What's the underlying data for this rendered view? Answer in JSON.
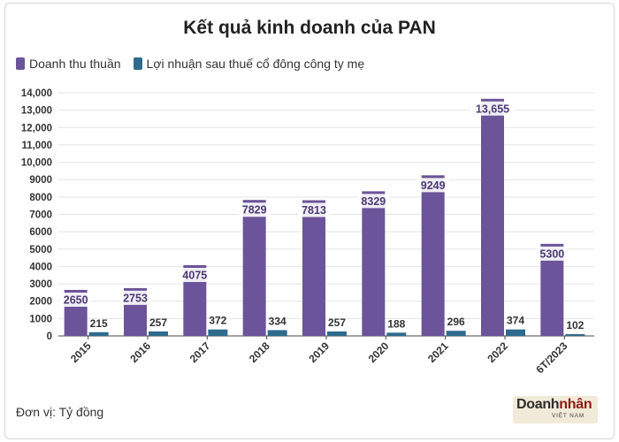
{
  "chart_data": {
    "type": "bar",
    "title": "Kết quả kinh doanh của PAN",
    "categories": [
      "2015",
      "2016",
      "2017",
      "2018",
      "2019",
      "2020",
      "2021",
      "2022",
      "6T/2023"
    ],
    "series": [
      {
        "name": "Doanh thu thuần",
        "color": "#6b5499",
        "values": [
          2650,
          2753,
          4075,
          7829,
          7813,
          8329,
          9249,
          13655,
          5300
        ],
        "labels": [
          "2650",
          "2753",
          "4075",
          "7829",
          "7813",
          "8329",
          "9249",
          "13,655",
          "5300"
        ]
      },
      {
        "name": "Lợi nhuận sau thuế cổ đông công ty mẹ",
        "color": "#2e6b8c",
        "values": [
          215,
          257,
          372,
          334,
          257,
          188,
          296,
          374,
          102
        ],
        "labels": [
          "215",
          "257",
          "372",
          "334",
          "257",
          "188",
          "296",
          "374",
          "102"
        ]
      }
    ],
    "ylim": [
      0,
      14000
    ],
    "yticks": [
      0,
      1000,
      2000,
      3000,
      4000,
      5000,
      6000,
      7000,
      8000,
      9000,
      10000,
      11000,
      12000,
      13000,
      14000
    ],
    "ytick_labels": [
      "0",
      "1000",
      "2000",
      "3000",
      "4000",
      "5000",
      "6000",
      "7000",
      "8000",
      "9000",
      "10,000",
      "11,000",
      "12,000",
      "13,000",
      "14,000"
    ],
    "grid": true,
    "legend": "top-left",
    "xlabel": "",
    "ylabel": ""
  },
  "unit_note": "Đơn vị: Tỷ đồng",
  "logo": {
    "main_a": "Doanh",
    "main_b": "nhân",
    "sub": "VIỆT NAM"
  }
}
